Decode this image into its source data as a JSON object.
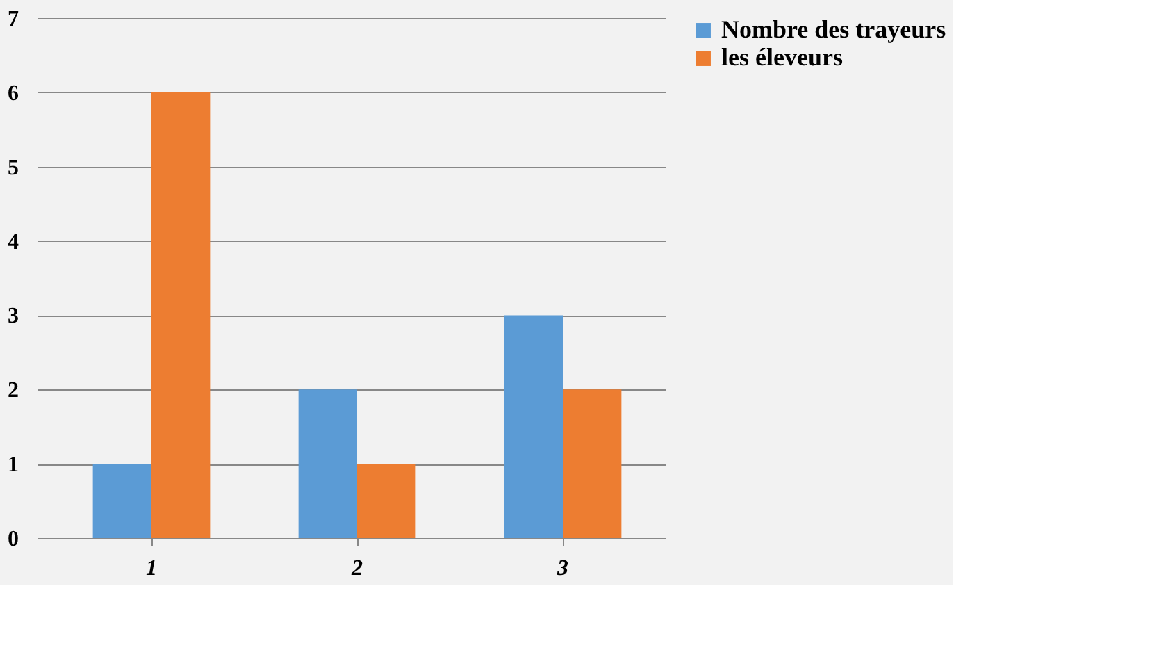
{
  "chart_data": {
    "type": "bar",
    "categories": [
      "1",
      "2",
      "3"
    ],
    "series": [
      {
        "name": "Nombre des trayeurs",
        "color": "#5b9bd5",
        "values": [
          1,
          2,
          3
        ]
      },
      {
        "name": "les éleveurs",
        "color": "#ed7d31",
        "values": [
          6,
          1,
          2
        ]
      }
    ],
    "ylim": [
      0,
      7
    ],
    "yticks": [
      0,
      1,
      2,
      3,
      4,
      5,
      6,
      7
    ],
    "grid": "y",
    "legend": "right"
  }
}
